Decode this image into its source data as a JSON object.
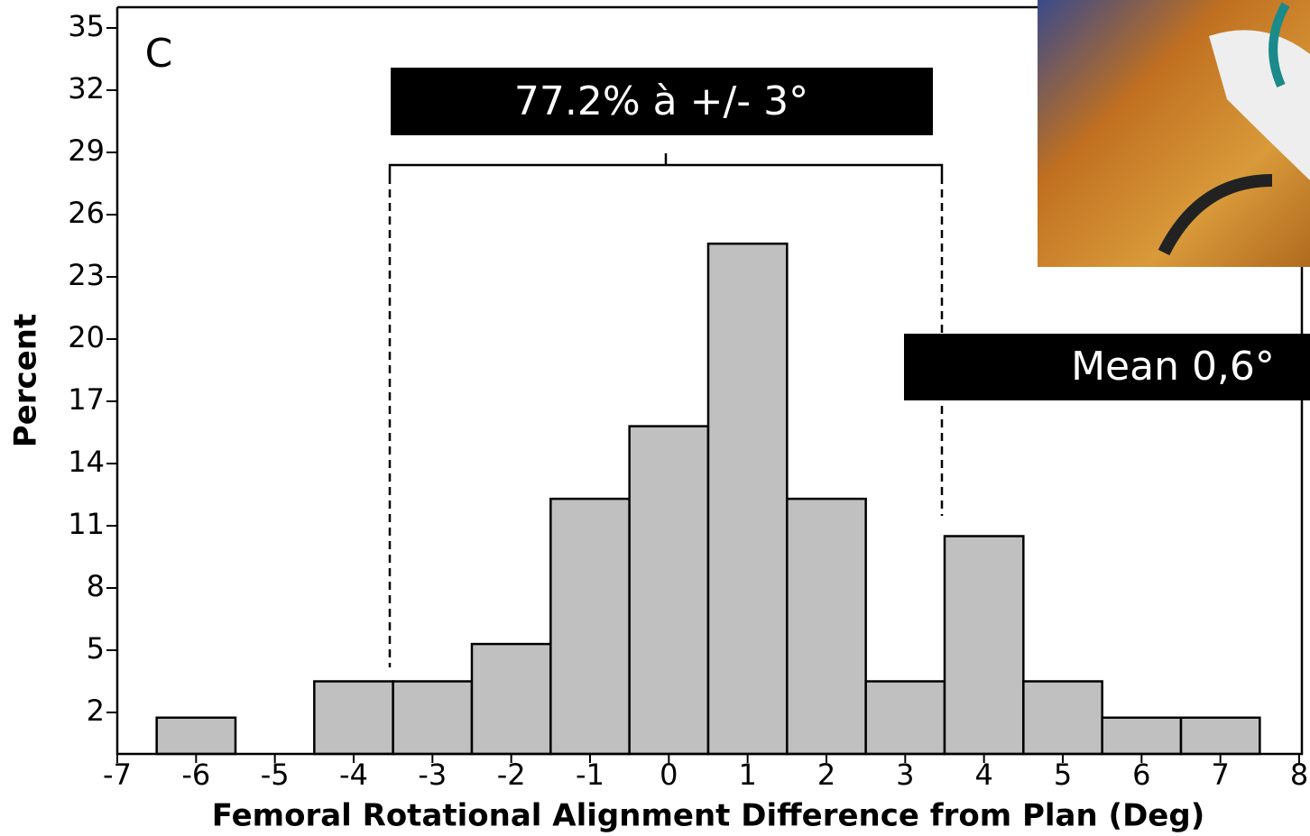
{
  "chart_data": {
    "type": "histogram",
    "panel_label": "C",
    "x_label": "Femoral Rotational Alignment Difference from Plan (Deg)",
    "y_label": "Percent",
    "bins": [
      -6.5,
      -5.5,
      -4.5,
      -3.5,
      -2.5,
      -1.5,
      -0.5,
      0.5,
      1.5,
      2.5,
      3.5,
      4.5,
      5.5,
      6.5,
      7.5
    ],
    "values": [
      1.75,
      0,
      3.5,
      3.5,
      5.3,
      12.3,
      15.8,
      24.6,
      12.3,
      3.5,
      10.5,
      3.5,
      1.75,
      1.75
    ],
    "color": "#c0c0c0",
    "xlim": [
      -7,
      8
    ],
    "xticks": [
      -7,
      -6,
      -5,
      -4,
      -3,
      -2,
      -1,
      0,
      1,
      2,
      3,
      4,
      5,
      6,
      7,
      8
    ],
    "ylim": [
      0,
      36
    ],
    "yticks": [
      2,
      5,
      8,
      11,
      14,
      17,
      20,
      23,
      26,
      29,
      32,
      35
    ],
    "annotations": [
      "77.2% à +/- 3°",
      "Mean 0,6°"
    ]
  }
}
